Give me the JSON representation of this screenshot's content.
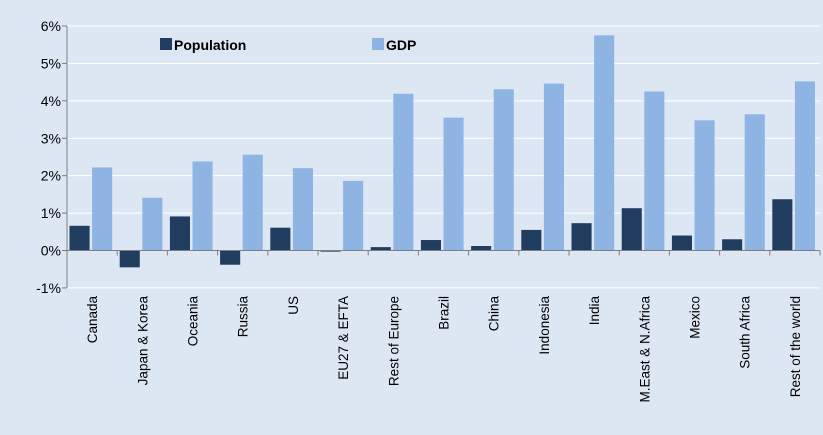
{
  "colors": {
    "background": "#dde6f3",
    "population": "#203c5f",
    "gdp": "#8eb4e3",
    "gridline": "#ffffff",
    "axis": "#7f7f7f"
  },
  "legend": {
    "population_label": "Population",
    "gdp_label": "GDP"
  },
  "chart_data": {
    "type": "bar",
    "title": "",
    "xlabel": "",
    "ylabel": "",
    "categories": [
      "Canada",
      "Japan & Korea",
      "Oceania",
      "Russia",
      "US",
      "EU27 & EFTA",
      "Rest of Europe",
      "Brazil",
      "China",
      "Indonesia",
      "India",
      "M.East & N.Africa",
      "Mexico",
      "South Africa",
      "Rest of the world"
    ],
    "series": [
      {
        "name": "Population",
        "color": "#203c5f",
        "values": [
          0.66,
          -0.45,
          0.91,
          -0.38,
          0.61,
          -0.03,
          0.09,
          0.28,
          0.12,
          0.55,
          0.73,
          1.13,
          0.4,
          0.3,
          1.37
        ]
      },
      {
        "name": "GDP",
        "color": "#8eb4e3",
        "values": [
          2.22,
          1.41,
          2.38,
          2.56,
          2.2,
          1.86,
          4.19,
          3.55,
          4.31,
          4.46,
          5.75,
          4.25,
          3.48,
          3.64,
          4.52
        ]
      }
    ],
    "ylim": [
      -1,
      6
    ],
    "yticks": [
      "-1%",
      "0%",
      "1%",
      "2%",
      "3%",
      "4%",
      "5%",
      "6%"
    ],
    "grid": true,
    "legend_position": "top-left"
  }
}
